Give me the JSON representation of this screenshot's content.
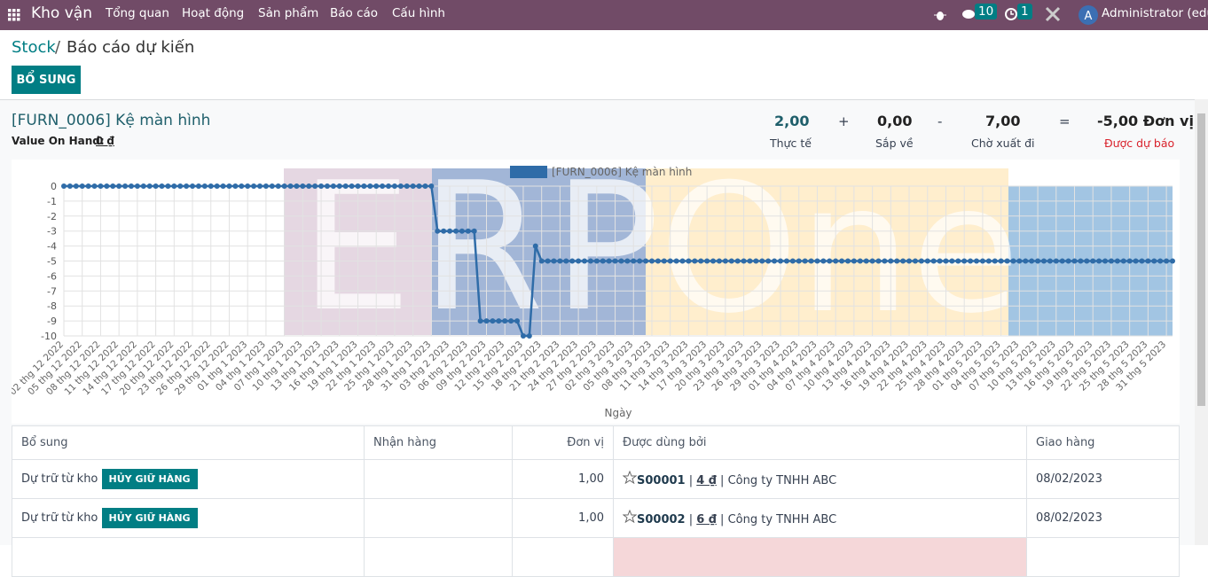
{
  "navbar": {
    "app": "Kho vận",
    "menu": [
      "Tổng quan",
      "Hoạt động",
      "Sản phẩm",
      "Báo cáo",
      "Cấu hình"
    ],
    "messages_badge": "10",
    "activities_badge": "1",
    "user_initial": "A",
    "user": "Administrator (edu)"
  },
  "breadcrumb": {
    "parent": "Stock",
    "separator": "/",
    "current": "Báo cáo dự kiến"
  },
  "button": "BỔ SUNG",
  "product": {
    "title": "[FURN_0006] Kệ màn hình",
    "value_label": "Value On Hand:",
    "value": "0 ₫"
  },
  "summary": {
    "items": [
      {
        "value": "2,00",
        "label": "Thực tế"
      },
      {
        "value": "0,00",
        "label": "Sắp về"
      },
      {
        "value": "7,00",
        "label": "Chờ xuất đi"
      },
      {
        "value": "-5,00 Đơn vị",
        "label": "Được dự báo"
      }
    ],
    "operators": [
      "+",
      "-",
      "="
    ]
  },
  "watermark": [
    "ERP",
    "One"
  ],
  "chart_data": {
    "type": "line",
    "xlabel": "Ngày",
    "grid": true,
    "legend": "top",
    "ylim": [
      -10,
      0
    ],
    "yticks": [
      0,
      -1,
      -2,
      -3,
      -4,
      -5,
      -6,
      -7,
      -8,
      -9,
      -10
    ],
    "categories": [
      "02 thg 12 2022",
      null,
      null,
      "05 thg 12 2022",
      null,
      null,
      "08 thg 12 2022",
      null,
      null,
      "11 thg 12 2022",
      null,
      null,
      "14 thg 12 2022",
      null,
      null,
      "17 thg 12 2022",
      null,
      null,
      "20 thg 12 2022",
      null,
      null,
      "23 thg 12 2022",
      null,
      null,
      "26 thg 12 2022",
      null,
      null,
      "29 thg 12 2022",
      null,
      null,
      "01 thg 1 2023",
      null,
      null,
      "04 thg 1 2023",
      null,
      null,
      "07 thg 1 2023",
      null,
      null,
      "10 thg 1 2023",
      null,
      null,
      "13 thg 1 2023",
      null,
      null,
      "16 thg 1 2023",
      null,
      null,
      "19 thg 1 2023",
      null,
      null,
      "22 thg 1 2023",
      null,
      null,
      "25 thg 1 2023",
      null,
      null,
      "28 thg 1 2023",
      null,
      null,
      "31 thg 1 2023",
      null,
      null,
      "03 thg 2 2023",
      null,
      null,
      "06 thg 2 2023",
      null,
      null,
      "09 thg 2 2023",
      null,
      null,
      "12 thg 2 2023",
      null,
      null,
      "15 thg 2 2023",
      null,
      null,
      "18 thg 2 2023",
      null,
      null,
      "21 thg 2 2023",
      null,
      null,
      "24 thg 2 2023",
      null,
      null,
      "27 thg 2 2023",
      null,
      null,
      "02 thg 3 2023",
      null,
      null,
      "05 thg 3 2023",
      null,
      null,
      "08 thg 3 2023",
      null,
      null,
      "11 thg 3 2023",
      null,
      null,
      "14 thg 3 2023",
      null,
      null,
      "17 thg 3 2023",
      null,
      null,
      "20 thg 3 2023",
      null,
      null,
      "23 thg 3 2023",
      null,
      null,
      "26 thg 3 2023",
      null,
      null,
      "29 thg 3 2023",
      null,
      null,
      "01 thg 4 2023",
      null,
      null,
      "04 thg 4 2023",
      null,
      null,
      "07 thg 4 2023",
      null,
      null,
      "10 thg 4 2023",
      null,
      null,
      "13 thg 4 2023",
      null,
      null,
      "16 thg 4 2023",
      null,
      null,
      "19 thg 4 2023",
      null,
      null,
      "22 thg 4 2023",
      null,
      null,
      "25 thg 4 2023",
      null,
      null,
      "28 thg 4 2023",
      null,
      null,
      "01 thg 5 2023",
      null,
      null,
      "04 thg 5 2023",
      null,
      null,
      "07 thg 5 2023",
      null,
      null,
      "10 thg 5 2023",
      null,
      null,
      "13 thg 5 2023",
      null,
      null,
      "16 thg 5 2023",
      null,
      null,
      "19 thg 5 2023",
      null,
      null,
      "22 thg 5 2023",
      null,
      null,
      "25 thg 5 2023",
      null,
      null,
      "28 thg 5 2023",
      null,
      null,
      "31 thg 5 2023",
      null
    ],
    "series": [
      {
        "name": "[FURN_0006] Kệ màn hình",
        "color": "#2f6ca8",
        "values": [
          0,
          0,
          0,
          0,
          0,
          0,
          0,
          0,
          0,
          0,
          0,
          0,
          0,
          0,
          0,
          0,
          0,
          0,
          0,
          0,
          0,
          0,
          0,
          0,
          0,
          0,
          0,
          0,
          0,
          0,
          0,
          0,
          0,
          0,
          0,
          0,
          0,
          0,
          0,
          0,
          0,
          0,
          0,
          0,
          0,
          0,
          0,
          0,
          0,
          0,
          0,
          0,
          0,
          0,
          0,
          0,
          0,
          0,
          0,
          0,
          0,
          -3,
          -3,
          -3,
          -3,
          -3,
          -3,
          -3,
          -9,
          -9,
          -9,
          -9,
          -9,
          -9,
          -9,
          -10,
          -10,
          -4,
          -5,
          -5,
          -5,
          -5,
          -5,
          -5,
          -5,
          -5,
          -5,
          -5,
          -5,
          -5,
          -5,
          -5,
          -5,
          -5,
          -5,
          -5,
          -5,
          -5,
          -5,
          -5,
          -5,
          -5,
          -5,
          -5,
          -5,
          -5,
          -5,
          -5,
          -5,
          -5,
          -5,
          -5,
          -5,
          -5,
          -5,
          -5,
          -5,
          -5,
          -5,
          -5,
          -5,
          -5,
          -5,
          -5,
          -5,
          -5,
          -5,
          -5,
          -5,
          -5,
          -5,
          -5,
          -5,
          -5,
          -5,
          -5,
          -5,
          -5,
          -5,
          -5,
          -5,
          -5,
          -5,
          -5,
          -5,
          -5,
          -5,
          -5,
          -5,
          -5,
          -5,
          -5,
          -5,
          -5,
          -5,
          -5,
          -5,
          -5,
          -5,
          -5,
          -5,
          -5,
          -5,
          -5,
          -5,
          -5,
          -5,
          -5,
          -5,
          -5,
          -5,
          -5,
          -5,
          -5,
          -5,
          -5,
          -5,
          -5,
          -5,
          -5,
          -5,
          -5
        ]
      }
    ]
  },
  "table": {
    "headers": [
      "Bổ sung",
      "Nhận hàng",
      "Đơn vị",
      "Được dùng bởi",
      "Giao hàng"
    ],
    "separator": "|",
    "rows": [
      [
        "Dự trữ từ kho",
        "HỦY GIỮ HÀNG",
        "1,00",
        "S00001",
        "4 ₫",
        "Công ty TNHH ABC",
        "08/02/2023"
      ],
      [
        "Dự trữ từ kho",
        "HỦY GIỮ HÀNG",
        "1,00",
        "S00002",
        "6 ₫",
        "Công ty TNHH ABC",
        "08/02/2023"
      ]
    ]
  }
}
